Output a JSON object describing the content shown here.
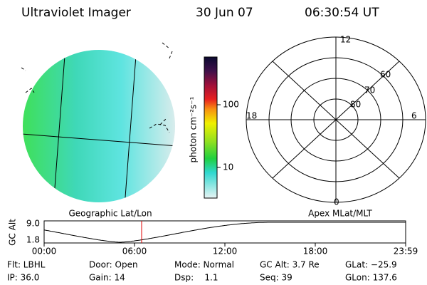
{
  "header": {
    "title": "Ultraviolet Imager",
    "date": "30 Jun 07",
    "time": "06:30:54 UT"
  },
  "colorbar": {
    "label": "photon cm⁻²s⁻¹",
    "ticks": [
      "100",
      "10"
    ]
  },
  "polar": {
    "mlt": [
      "12",
      "18",
      "6",
      "0"
    ],
    "mlat": [
      "60",
      "70",
      "80"
    ]
  },
  "captions": {
    "left": "Geographic Lat/Lon",
    "right": "Apex MLat/MLT"
  },
  "altitude": {
    "label": "GC Alt",
    "yticks": [
      "9.0",
      "1.8"
    ],
    "xticks": [
      "00:00",
      "06:00",
      "12:00",
      "18:00",
      "23:59"
    ]
  },
  "status": {
    "rows": [
      [
        "Flt: LBHL",
        "Door: Open",
        "Mode: Normal",
        "GC Alt: 3.7 Re",
        "GLat: −25.9"
      ],
      [
        "IP: 36.0",
        "Gain: 14",
        "Dsp:    1.1",
        "Seq: 39",
        "GLon: 137.6"
      ]
    ]
  }
}
